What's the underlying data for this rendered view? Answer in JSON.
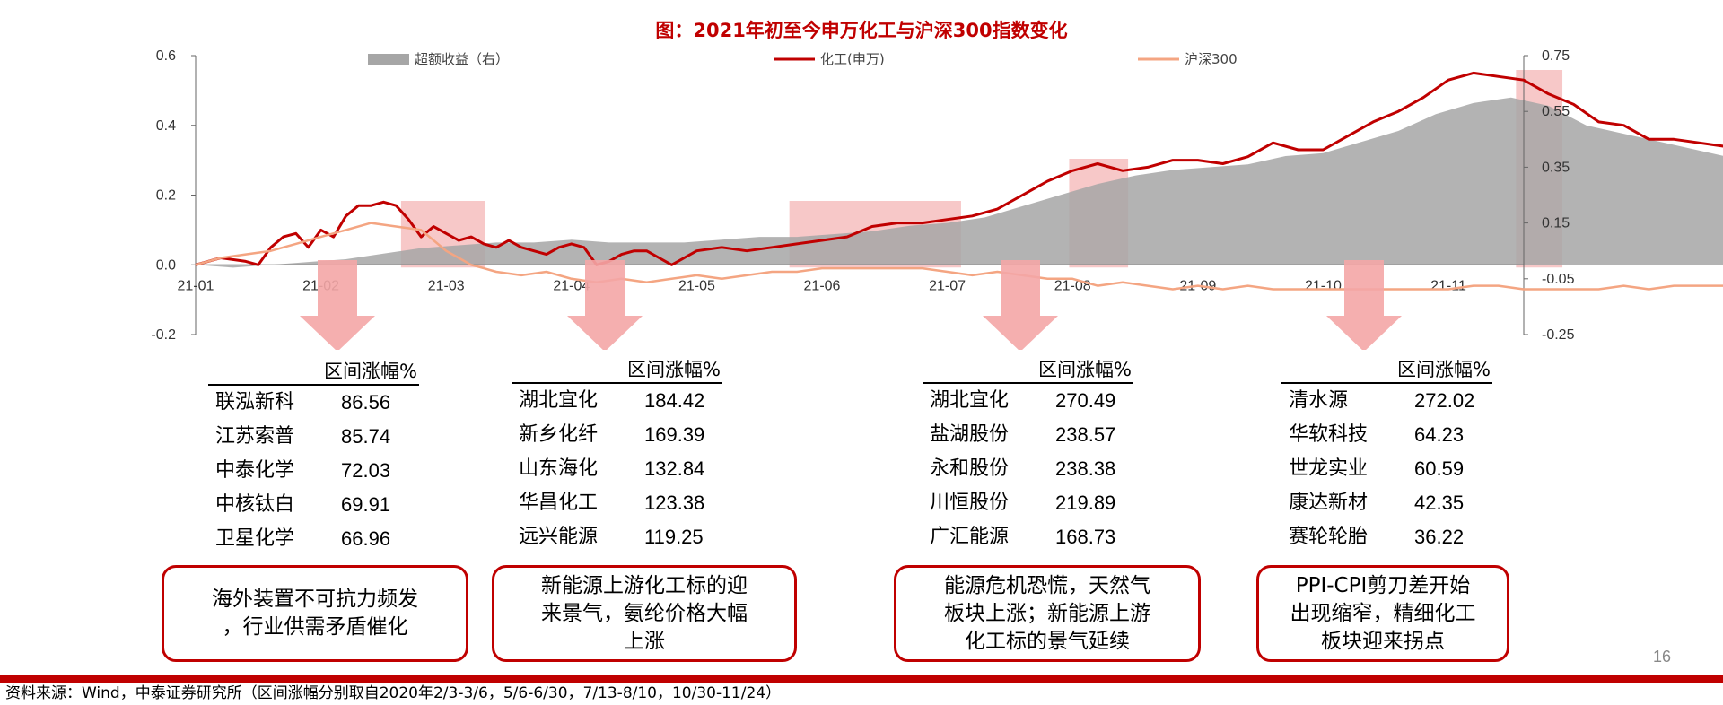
{
  "title": "图：2021年初至今申万化工与沪深300指数变化",
  "chart_data": {
    "type": "line",
    "title": "图：2021年初至今申万化工与沪深300指数变化",
    "x_ticks": [
      "21-01",
      "21-02",
      "21-03",
      "21-04",
      "21-05",
      "21-06",
      "21-07",
      "21-08",
      "21-09",
      "21-10",
      "21-11"
    ],
    "y_left": {
      "range": [
        -0.2,
        0.6
      ],
      "ticks": [
        "0.6",
        "0.4",
        "0.2",
        "0.0",
        "-0.2"
      ]
    },
    "y_right": {
      "range": [
        -0.25,
        0.75
      ],
      "ticks": [
        "0.75",
        "0.55",
        "0.35",
        "0.15",
        "-0.05",
        "-0.25"
      ]
    },
    "legend": [
      "超额收益（右）",
      "化工(申万)",
      "沪深300"
    ],
    "highlight_periods": [
      {
        "start": "2020-02-03",
        "end": "2020-03-06"
      },
      {
        "start": "2020-05-06",
        "end": "2020-06-30"
      },
      {
        "start": "2020-07-13",
        "end": "2020-08-10"
      },
      {
        "start": "2020-10-30",
        "end": "2020-11-24"
      }
    ],
    "series": [
      {
        "name": "化工(申万)",
        "axis": "left",
        "color": "#c00000",
        "points": [
          [
            0,
            0.0
          ],
          [
            0.2,
            0.02
          ],
          [
            0.4,
            0.01
          ],
          [
            0.5,
            0.0
          ],
          [
            0.6,
            0.05
          ],
          [
            0.7,
            0.08
          ],
          [
            0.8,
            0.09
          ],
          [
            0.9,
            0.05
          ],
          [
            1.0,
            0.1
          ],
          [
            1.1,
            0.08
          ],
          [
            1.2,
            0.14
          ],
          [
            1.3,
            0.17
          ],
          [
            1.4,
            0.17
          ],
          [
            1.5,
            0.18
          ],
          [
            1.6,
            0.17
          ],
          [
            1.7,
            0.13
          ],
          [
            1.8,
            0.08
          ],
          [
            1.9,
            0.11
          ],
          [
            2.0,
            0.09
          ],
          [
            2.1,
            0.07
          ],
          [
            2.2,
            0.08
          ],
          [
            2.3,
            0.06
          ],
          [
            2.4,
            0.05
          ],
          [
            2.5,
            0.07
          ],
          [
            2.6,
            0.05
          ],
          [
            2.7,
            0.04
          ],
          [
            2.8,
            0.03
          ],
          [
            2.9,
            0.05
          ],
          [
            3.0,
            0.06
          ],
          [
            3.1,
            0.05
          ],
          [
            3.2,
            0.0
          ],
          [
            3.3,
            0.01
          ],
          [
            3.4,
            0.03
          ],
          [
            3.5,
            0.04
          ],
          [
            3.6,
            0.04
          ],
          [
            3.7,
            0.02
          ],
          [
            3.8,
            0.0
          ],
          [
            3.9,
            0.02
          ],
          [
            4.0,
            0.04
          ],
          [
            4.2,
            0.05
          ],
          [
            4.4,
            0.04
          ],
          [
            4.6,
            0.05
          ],
          [
            4.8,
            0.06
          ],
          [
            5.0,
            0.07
          ],
          [
            5.2,
            0.08
          ],
          [
            5.4,
            0.11
          ],
          [
            5.6,
            0.12
          ],
          [
            5.8,
            0.12
          ],
          [
            6.0,
            0.13
          ],
          [
            6.2,
            0.14
          ],
          [
            6.4,
            0.16
          ],
          [
            6.6,
            0.2
          ],
          [
            6.8,
            0.24
          ],
          [
            7.0,
            0.27
          ],
          [
            7.2,
            0.29
          ],
          [
            7.4,
            0.27
          ],
          [
            7.6,
            0.28
          ],
          [
            7.8,
            0.3
          ],
          [
            8.0,
            0.3
          ],
          [
            8.2,
            0.29
          ],
          [
            8.4,
            0.31
          ],
          [
            8.6,
            0.35
          ],
          [
            8.8,
            0.33
          ],
          [
            9.0,
            0.33
          ],
          [
            9.2,
            0.37
          ],
          [
            9.4,
            0.41
          ],
          [
            9.6,
            0.44
          ],
          [
            9.8,
            0.48
          ],
          [
            10.0,
            0.53
          ],
          [
            10.2,
            0.55
          ],
          [
            10.4,
            0.54
          ],
          [
            10.6,
            0.53
          ],
          [
            10.8,
            0.49
          ],
          [
            11.0,
            0.46
          ],
          [
            11.2,
            0.41
          ],
          [
            11.4,
            0.4
          ],
          [
            11.6,
            0.36
          ],
          [
            11.8,
            0.36
          ],
          [
            12.0,
            0.35
          ],
          [
            12.2,
            0.34
          ],
          [
            12.4,
            0.31
          ],
          [
            12.6,
            0.29
          ],
          [
            12.8,
            0.27
          ],
          [
            13.0,
            0.28
          ],
          [
            13.2,
            0.3
          ],
          [
            13.4,
            0.29
          ],
          [
            13.6,
            0.27
          ],
          [
            13.8,
            0.26
          ],
          [
            14.0,
            0.25
          ],
          [
            14.1,
            0.27
          ],
          [
            14.2,
            0.26
          ],
          [
            14.4,
            0.23
          ],
          [
            14.6,
            0.22
          ],
          [
            14.8,
            0.22
          ]
        ]
      },
      {
        "name": "沪深300",
        "axis": "left",
        "color": "#f4a582",
        "points": [
          [
            0,
            0.0
          ],
          [
            0.2,
            0.02
          ],
          [
            0.4,
            0.03
          ],
          [
            0.6,
            0.04
          ],
          [
            0.8,
            0.06
          ],
          [
            1.0,
            0.08
          ],
          [
            1.2,
            0.1
          ],
          [
            1.4,
            0.12
          ],
          [
            1.6,
            0.11
          ],
          [
            1.8,
            0.1
          ],
          [
            1.9,
            0.07
          ],
          [
            2.0,
            0.04
          ],
          [
            2.1,
            0.02
          ],
          [
            2.2,
            0.0
          ],
          [
            2.3,
            -0.01
          ],
          [
            2.4,
            -0.02
          ],
          [
            2.6,
            -0.03
          ],
          [
            2.8,
            -0.02
          ],
          [
            3.0,
            -0.04
          ],
          [
            3.2,
            -0.05
          ],
          [
            3.4,
            -0.04
          ],
          [
            3.6,
            -0.05
          ],
          [
            3.8,
            -0.04
          ],
          [
            4.0,
            -0.03
          ],
          [
            4.2,
            -0.04
          ],
          [
            4.4,
            -0.03
          ],
          [
            4.6,
            -0.02
          ],
          [
            4.8,
            -0.02
          ],
          [
            5.0,
            -0.01
          ],
          [
            5.2,
            -0.01
          ],
          [
            5.4,
            -0.01
          ],
          [
            5.6,
            -0.01
          ],
          [
            5.8,
            -0.01
          ],
          [
            6.0,
            -0.02
          ],
          [
            6.2,
            -0.03
          ],
          [
            6.4,
            -0.02
          ],
          [
            6.6,
            -0.03
          ],
          [
            6.8,
            -0.04
          ],
          [
            7.0,
            -0.04
          ],
          [
            7.2,
            -0.06
          ],
          [
            7.4,
            -0.05
          ],
          [
            7.6,
            -0.06
          ],
          [
            7.8,
            -0.07
          ],
          [
            8.0,
            -0.06
          ],
          [
            8.2,
            -0.07
          ],
          [
            8.4,
            -0.06
          ],
          [
            8.6,
            -0.07
          ],
          [
            8.8,
            -0.07
          ],
          [
            9.0,
            -0.07
          ],
          [
            9.2,
            -0.07
          ],
          [
            9.4,
            -0.07
          ],
          [
            9.6,
            -0.07
          ],
          [
            9.8,
            -0.07
          ],
          [
            10.0,
            -0.07
          ],
          [
            10.2,
            -0.06
          ],
          [
            10.4,
            -0.06
          ],
          [
            10.6,
            -0.07
          ],
          [
            10.8,
            -0.07
          ],
          [
            11.0,
            -0.07
          ],
          [
            11.2,
            -0.07
          ],
          [
            11.4,
            -0.06
          ],
          [
            11.6,
            -0.07
          ],
          [
            11.8,
            -0.06
          ],
          [
            12.0,
            -0.06
          ],
          [
            12.2,
            -0.06
          ],
          [
            12.4,
            -0.07
          ],
          [
            12.6,
            -0.06
          ],
          [
            12.8,
            -0.07
          ],
          [
            13.0,
            -0.06
          ],
          [
            13.2,
            -0.06
          ],
          [
            13.4,
            -0.06
          ],
          [
            13.6,
            -0.07
          ],
          [
            13.8,
            -0.06
          ],
          [
            14.0,
            -0.06
          ],
          [
            14.2,
            -0.06
          ],
          [
            14.4,
            -0.06
          ],
          [
            14.6,
            -0.06
          ],
          [
            14.8,
            -0.07
          ]
        ]
      },
      {
        "name": "超额收益（右）",
        "axis": "right",
        "color": "#a6a6a6",
        "type": "area",
        "points": [
          [
            0,
            0.0
          ],
          [
            0.3,
            -0.01
          ],
          [
            0.6,
            0.0
          ],
          [
            0.9,
            0.01
          ],
          [
            1.2,
            0.02
          ],
          [
            1.5,
            0.04
          ],
          [
            1.8,
            0.06
          ],
          [
            2.1,
            0.07
          ],
          [
            2.4,
            0.08
          ],
          [
            2.7,
            0.08
          ],
          [
            3.0,
            0.09
          ],
          [
            3.3,
            0.08
          ],
          [
            3.6,
            0.08
          ],
          [
            3.9,
            0.08
          ],
          [
            4.2,
            0.09
          ],
          [
            4.5,
            0.1
          ],
          [
            4.8,
            0.1
          ],
          [
            5.1,
            0.11
          ],
          [
            5.4,
            0.12
          ],
          [
            5.7,
            0.14
          ],
          [
            6.0,
            0.15
          ],
          [
            6.3,
            0.17
          ],
          [
            6.6,
            0.21
          ],
          [
            6.9,
            0.25
          ],
          [
            7.2,
            0.29
          ],
          [
            7.5,
            0.32
          ],
          [
            7.8,
            0.34
          ],
          [
            8.1,
            0.35
          ],
          [
            8.4,
            0.36
          ],
          [
            8.7,
            0.39
          ],
          [
            9.0,
            0.4
          ],
          [
            9.3,
            0.44
          ],
          [
            9.6,
            0.48
          ],
          [
            9.9,
            0.54
          ],
          [
            10.2,
            0.58
          ],
          [
            10.5,
            0.6
          ],
          [
            10.8,
            0.57
          ],
          [
            11.1,
            0.5
          ],
          [
            11.4,
            0.47
          ],
          [
            11.7,
            0.44
          ],
          [
            12.0,
            0.41
          ],
          [
            12.3,
            0.38
          ],
          [
            12.6,
            0.36
          ],
          [
            12.9,
            0.34
          ],
          [
            13.2,
            0.35
          ],
          [
            13.5,
            0.34
          ],
          [
            13.8,
            0.33
          ],
          [
            14.1,
            0.33
          ],
          [
            14.4,
            0.31
          ],
          [
            14.6,
            0.29
          ],
          [
            14.8,
            0.27
          ]
        ]
      }
    ]
  },
  "tables": [
    {
      "header": "区间涨幅%",
      "rows": [
        {
          "name": "联泓新科",
          "value": "86.56"
        },
        {
          "name": "江苏索普",
          "value": "85.74"
        },
        {
          "name": "中泰化学",
          "value": "72.03"
        },
        {
          "name": "中核钛白",
          "value": "69.91"
        },
        {
          "name": "卫星化学",
          "value": "66.96"
        }
      ],
      "note": [
        "海外装置不可抗力频发",
        "，行业供需矛盾催化"
      ]
    },
    {
      "header": "区间涨幅%",
      "rows": [
        {
          "name": "湖北宜化",
          "value": "184.42"
        },
        {
          "name": "新乡化纤",
          "value": "169.39"
        },
        {
          "name": "山东海化",
          "value": "132.84"
        },
        {
          "name": "华昌化工",
          "value": "123.38"
        },
        {
          "name": "远兴能源",
          "value": "119.25"
        }
      ],
      "note": [
        "新能源上游化工标的迎",
        "来景气，氨纶价格大幅",
        "上涨"
      ]
    },
    {
      "header": "区间涨幅%",
      "rows": [
        {
          "name": "湖北宜化",
          "value": "270.49"
        },
        {
          "name": "盐湖股份",
          "value": "238.57"
        },
        {
          "name": "永和股份",
          "value": "238.38"
        },
        {
          "name": "川恒股份",
          "value": "219.89"
        },
        {
          "name": "广汇能源",
          "value": "168.73"
        }
      ],
      "note": [
        "能源危机恐慌，天然气",
        "板块上涨；新能源上游",
        "化工标的景气延续"
      ]
    },
    {
      "header": "区间涨幅%",
      "rows": [
        {
          "name": "清水源",
          "value": "272.02"
        },
        {
          "name": "华软科技",
          "value": "64.23"
        },
        {
          "name": "世龙实业",
          "value": "60.59"
        },
        {
          "name": "康达新材",
          "value": "42.35"
        },
        {
          "name": "赛轮轮胎",
          "value": "36.22"
        }
      ],
      "note": [
        "PPI-CPI剪刀差开始",
        "出现缩窄，精细化工",
        "板块迎来拐点"
      ]
    }
  ],
  "footer": {
    "source": "资料来源：Wind，中泰证券研究所（区间涨幅分别取自2020年2/3-3/6，5/6-6/30，7/13-8/10，10/30-11/24）",
    "page_number": "16"
  },
  "colors": {
    "accent": "#c00000",
    "highlight": "#f4b6b6",
    "area_gray": "#a6a6a6",
    "hs300": "#f4a582",
    "arrow": "#f4a6a6"
  }
}
